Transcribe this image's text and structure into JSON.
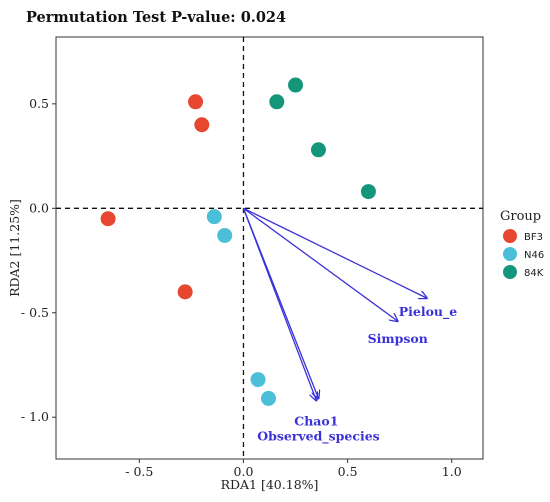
{
  "chart_data": {
    "type": "scatter",
    "title": "Permutation Test P-value: 0.024",
    "xlabel": "RDA1 [40.18%]",
    "ylabel": "RDA2 [11.25%]",
    "xlim": [
      -0.9,
      1.15
    ],
    "ylim": [
      -1.2,
      0.82
    ],
    "x_ticks": [
      -0.5,
      0.0,
      0.5,
      1.0
    ],
    "x_tick_labels": [
      "- 0.5",
      "0.0",
      "0.5",
      "1.0"
    ],
    "y_ticks": [
      -1.0,
      -0.5,
      0.0,
      0.5
    ],
    "y_tick_labels": [
      "- 1.0",
      "- 0.5",
      "0.0",
      "0.5"
    ],
    "grid": false,
    "reference_lines": "dashed lines at x = 0 and y = 0",
    "legend": {
      "title": "Group",
      "position": "right",
      "entries": [
        "BF3",
        "N46",
        "84K"
      ]
    },
    "series": [
      {
        "name": "BF3",
        "color": "#e8472f",
        "points": [
          {
            "x": -0.23,
            "y": 0.51
          },
          {
            "x": -0.2,
            "y": 0.4
          },
          {
            "x": -0.65,
            "y": -0.05
          },
          {
            "x": -0.28,
            "y": -0.4
          }
        ]
      },
      {
        "name": "N46",
        "color": "#4cbfd8",
        "points": [
          {
            "x": -0.14,
            "y": -0.04
          },
          {
            "x": -0.09,
            "y": -0.13
          },
          {
            "x": 0.07,
            "y": -0.82
          },
          {
            "x": 0.12,
            "y": -0.91
          }
        ]
      },
      {
        "name": "84K",
        "color": "#13967a",
        "points": [
          {
            "x": 0.25,
            "y": 0.59
          },
          {
            "x": 0.16,
            "y": 0.51
          },
          {
            "x": 0.36,
            "y": 0.28
          },
          {
            "x": 0.6,
            "y": 0.08
          }
        ]
      }
    ],
    "arrows": [
      {
        "label": "Pielou_e",
        "x": 0.88,
        "y": -0.43
      },
      {
        "label": "Simpson",
        "x": 0.74,
        "y": -0.54
      },
      {
        "label": "Chao1",
        "x": 0.35,
        "y": -0.92
      },
      {
        "label": "Observed_species",
        "x": 0.36,
        "y": -0.91
      }
    ],
    "arrow_color": "#3a32d9"
  }
}
